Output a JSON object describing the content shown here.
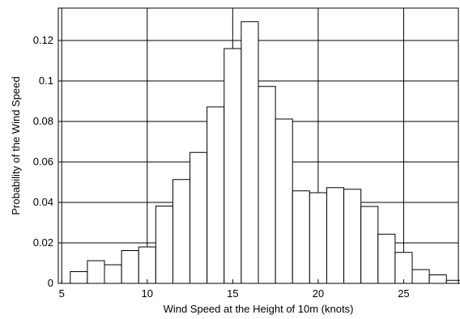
{
  "chart_data": {
    "type": "bar",
    "title": "",
    "xlabel": "Wind Speed at the Height of 10m (knots)",
    "ylabel": "Probability of the Wind Speed",
    "xlim": [
      4.8,
      28.2
    ],
    "ylim": [
      0,
      0.136
    ],
    "bin_width": 1,
    "grid": true,
    "bar_fill": "#ffffff",
    "bar_edge": "#000000",
    "x_ticks": [
      5,
      10,
      15,
      20,
      25
    ],
    "y_ticks": [
      0,
      0.02,
      0.04,
      0.06,
      0.08,
      0.1,
      0.12
    ],
    "x_tick_labels": [
      "5",
      "10",
      "15",
      "20",
      "25"
    ],
    "y_tick_labels": [
      "0",
      "0.02",
      "0.04",
      "0.06",
      "0.08",
      "0.1",
      "0.12"
    ],
    "bin_centers": [
      6,
      7,
      8,
      9,
      10,
      11,
      12,
      13,
      14,
      15,
      16,
      17,
      18,
      19,
      20,
      21,
      22,
      23,
      24,
      25,
      26,
      27,
      28
    ],
    "values": [
      0.0058,
      0.0112,
      0.0092,
      0.0162,
      0.018,
      0.0382,
      0.0513,
      0.0647,
      0.0872,
      0.116,
      0.1293,
      0.0973,
      0.0812,
      0.0457,
      0.0448,
      0.0473,
      0.0465,
      0.038,
      0.0243,
      0.0153,
      0.0068,
      0.0042,
      0.0015
    ]
  }
}
